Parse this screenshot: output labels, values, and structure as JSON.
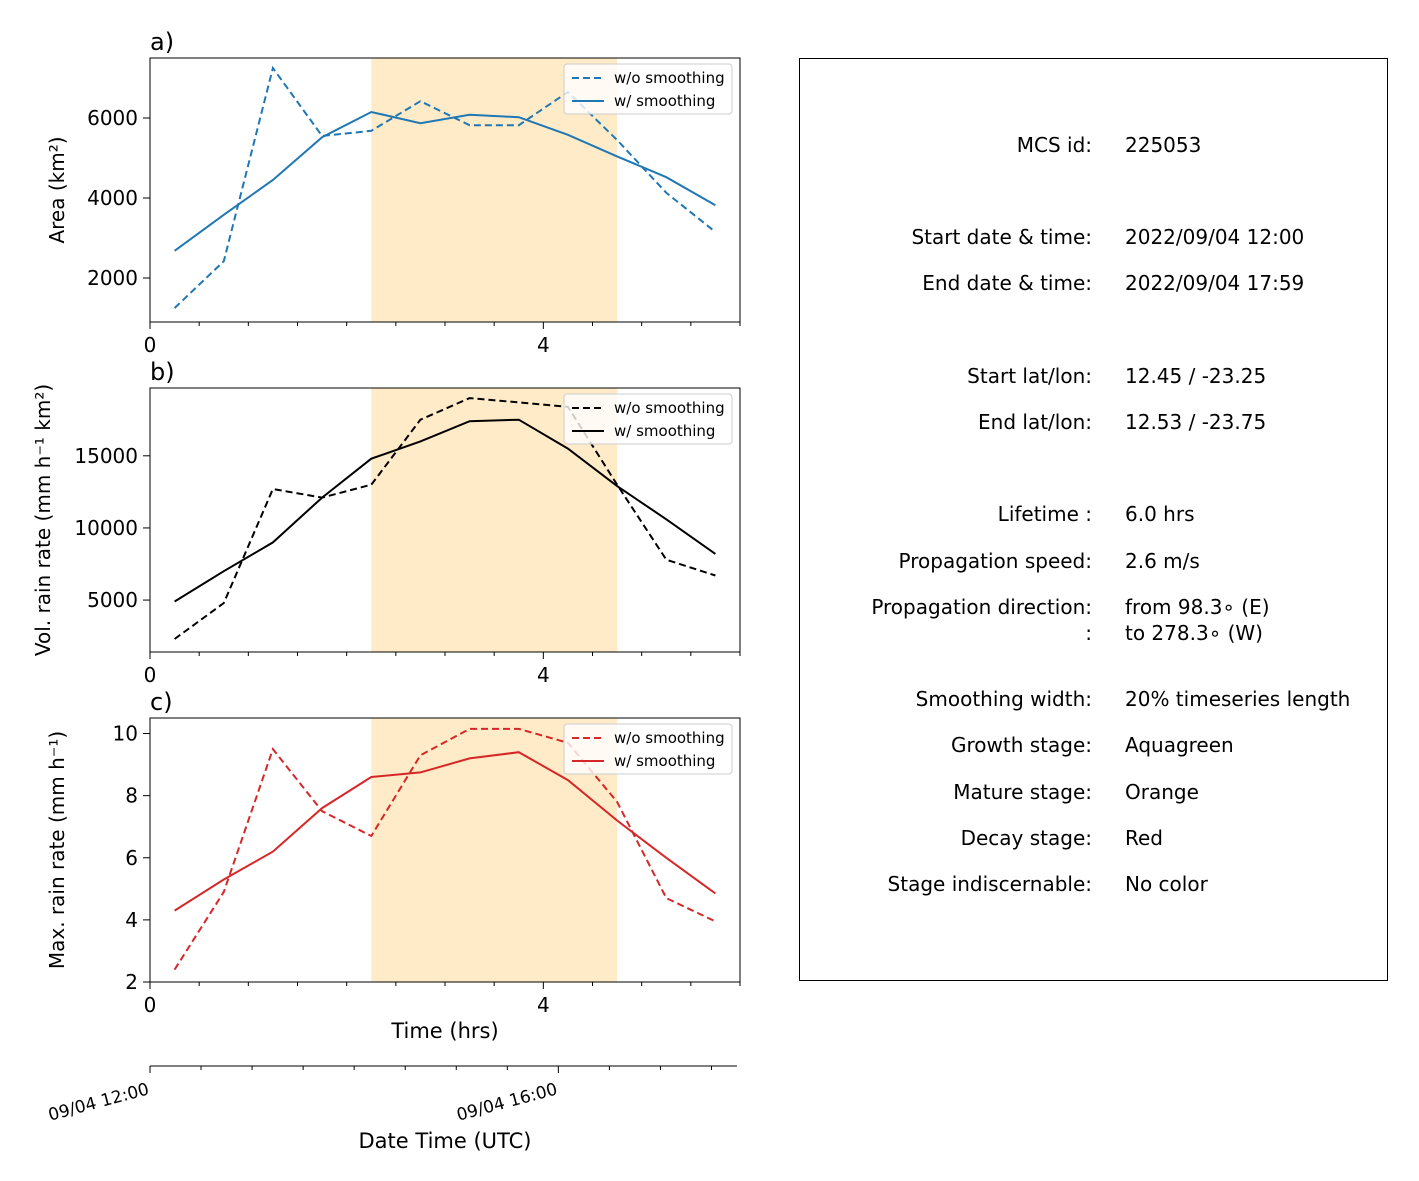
{
  "chart_data": [
    {
      "type": "line",
      "panel_label": "a)",
      "ylabel": "Area  (km²)",
      "xlabel": "",
      "xlim": [
        0,
        6
      ],
      "ylim": [
        900,
        7500
      ],
      "xticks": [
        0,
        4
      ],
      "yticks": [
        2000,
        4000,
        6000
      ],
      "mature_stage_span": [
        2.25,
        4.75
      ],
      "legend_position": "upper right",
      "color": "#1f77b4",
      "x": [
        0.25,
        0.75,
        1.25,
        1.75,
        2.25,
        2.75,
        3.25,
        3.75,
        4.25,
        4.75,
        5.25,
        5.75
      ],
      "series": [
        {
          "name": "w/o smoothing",
          "style": "dashed",
          "values": [
            1250,
            2420,
            7250,
            5550,
            5680,
            6420,
            5820,
            5820,
            6650,
            5450,
            4130,
            3150
          ]
        },
        {
          "name": "w/ smoothing",
          "style": "solid",
          "values": [
            2680,
            3580,
            4450,
            5520,
            6150,
            5870,
            6080,
            6020,
            5580,
            5040,
            4520,
            3820
          ]
        }
      ]
    },
    {
      "type": "line",
      "panel_label": "b)",
      "ylabel": "Vol. rain rate (mm h⁻¹ km²)",
      "xlabel": "",
      "xlim": [
        0,
        6
      ],
      "ylim": [
        1400,
        19700
      ],
      "xticks": [
        0,
        4
      ],
      "yticks": [
        5000,
        10000,
        15000
      ],
      "mature_stage_span": [
        2.25,
        4.75
      ],
      "legend_position": "upper right",
      "color": "#000000",
      "x": [
        0.25,
        0.75,
        1.25,
        1.75,
        2.25,
        2.75,
        3.25,
        3.75,
        4.25,
        4.75,
        5.25,
        5.75
      ],
      "series": [
        {
          "name": "w/o smoothing",
          "style": "dashed",
          "values": [
            2300,
            4800,
            12700,
            12100,
            13000,
            17500,
            19000,
            18700,
            18400,
            13000,
            7800,
            6700
          ]
        },
        {
          "name": "w/ smoothing",
          "style": "solid",
          "values": [
            4900,
            7000,
            9000,
            12100,
            14800,
            16000,
            17400,
            17500,
            15500,
            12900,
            10600,
            8200
          ]
        }
      ]
    },
    {
      "type": "line",
      "panel_label": "c)",
      "ylabel": "Max. rain rate  (mm h⁻¹)",
      "xlabel": "Time (hrs)",
      "xlim": [
        0,
        6
      ],
      "ylim": [
        2,
        10.5
      ],
      "xticks": [
        0,
        4
      ],
      "yticks": [
        2,
        4,
        6,
        8,
        10
      ],
      "mature_stage_span": [
        2.25,
        4.75
      ],
      "legend_position": "upper right",
      "color": "#d62728",
      "x": [
        0.25,
        0.75,
        1.25,
        1.75,
        2.25,
        2.75,
        3.25,
        3.75,
        4.25,
        4.75,
        5.25,
        5.75
      ],
      "series": [
        {
          "name": "w/o smoothing",
          "style": "dashed",
          "values": [
            2.4,
            4.9,
            9.5,
            7.5,
            6.7,
            9.3,
            10.15,
            10.15,
            9.7,
            7.8,
            4.7,
            3.95
          ]
        },
        {
          "name": "w/ smoothing",
          "style": "solid",
          "values": [
            4.3,
            5.3,
            6.2,
            7.6,
            8.6,
            8.75,
            9.2,
            9.4,
            8.5,
            7.2,
            6.0,
            4.85
          ]
        }
      ]
    }
  ],
  "time_axis": {
    "label": "Date Time (UTC)",
    "tick_labels": [
      {
        "hours": 0,
        "text": "09/04 12:00"
      },
      {
        "hours": 4,
        "text": "09/04 16:00"
      }
    ]
  },
  "info_panel": {
    "rows": [
      {
        "label": "MCS id:",
        "value": "225053"
      },
      {
        "label": "Start date & time:",
        "value": "2022/09/04 12:00"
      },
      {
        "label": "End date & time:",
        "value": "2022/09/04 17:59"
      },
      {
        "label": "Start lat/lon:",
        "value": "12.45 / -23.25"
      },
      {
        "label": "End lat/lon:",
        "value": "12.53 / -23.75"
      },
      {
        "label": "Lifetime :",
        "value": "6.0 hrs"
      },
      {
        "label": "Propagation speed:",
        "value": "2.6 m/s"
      },
      {
        "label": "Propagation direction:",
        "value": "from  98.3∘ (E)"
      },
      {
        "label": ":",
        "value": "to   278.3∘ (W)"
      },
      {
        "label": "Smoothing width:",
        "value": "20% timeseries length"
      },
      {
        "label": "Growth stage:",
        "value": "Aquagreen"
      },
      {
        "label": "Mature stage:",
        "value": "Orange"
      },
      {
        "label": "Decay stage:",
        "value": "Red"
      },
      {
        "label": "Stage indiscernable:",
        "value": "No color"
      }
    ]
  },
  "colors": {
    "mature_shading": "#ffebc8",
    "area": "#1f77b4",
    "vol_rain": "#000000",
    "max_rain": "#d62728"
  }
}
